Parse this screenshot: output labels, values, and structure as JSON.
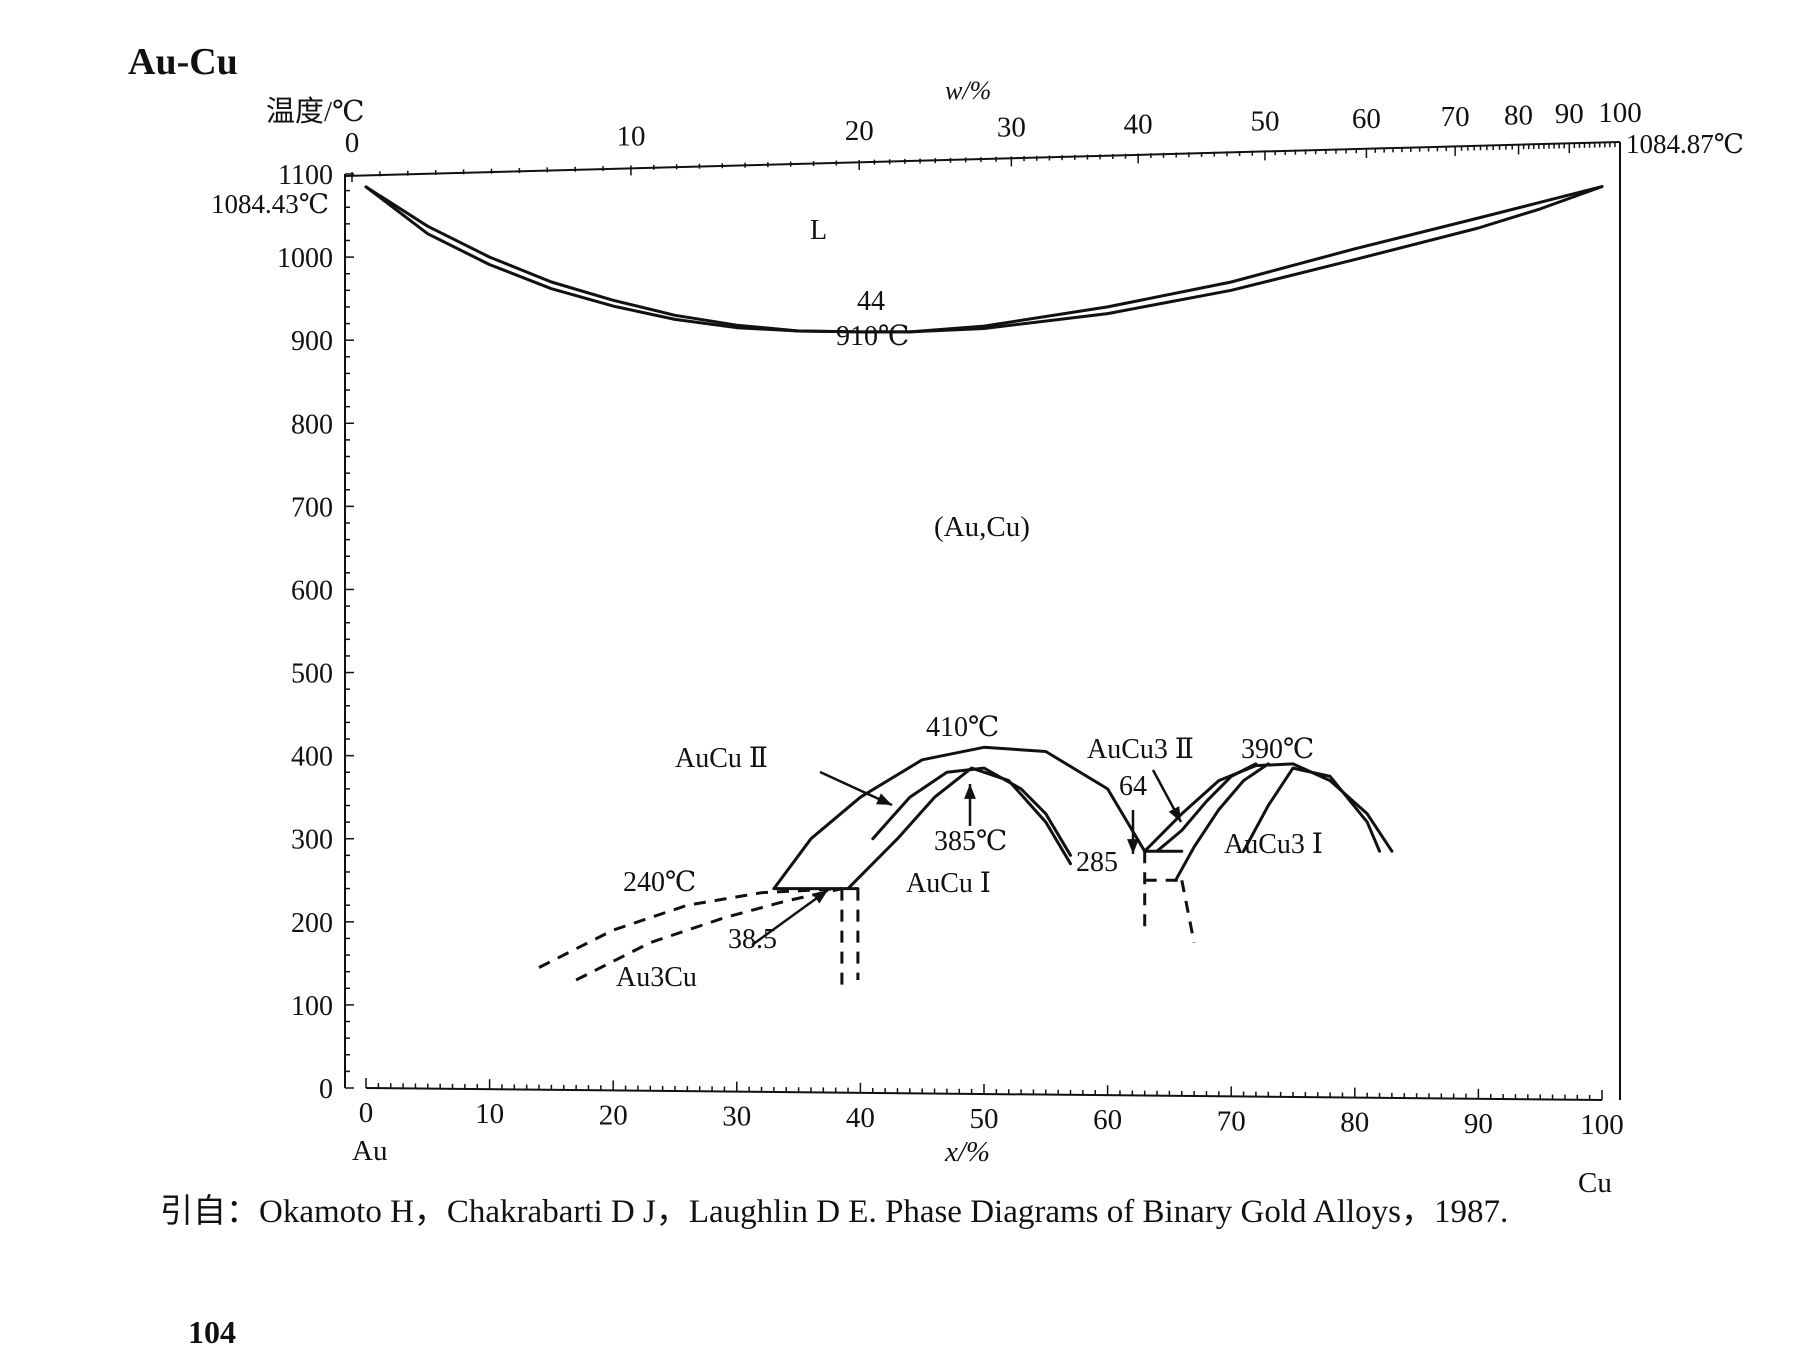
{
  "title": "Au-Cu",
  "chart_data": {
    "type": "line",
    "title": "Au-Cu",
    "ylabel": "温度/℃",
    "xlabel": "x/%",
    "top_xlabel": "w/%",
    "ylim": [
      0,
      1100
    ],
    "xlim": [
      0,
      100
    ],
    "y_ticks": [
      "0",
      "100",
      "200",
      "300",
      "400",
      "500",
      "600",
      "700",
      "800",
      "900",
      "1000",
      "1100"
    ],
    "x_ticks": [
      "0",
      "10",
      "20",
      "30",
      "40",
      "50",
      "60",
      "70",
      "80",
      "90",
      "100"
    ],
    "top_ticks": [
      "0",
      "10",
      "20",
      "30",
      "40",
      "50",
      "60",
      "70",
      "80",
      "90",
      "100"
    ],
    "left_element": "Au",
    "right_element": "Cu",
    "melting_points": {
      "Au": "1084.43℃",
      "Cu": "1084.87℃"
    },
    "phase_labels": {
      "liquid": "L",
      "solid_solution": "(Au,Cu)",
      "aucu_ii": "AuCu Ⅱ",
      "aucu_i": "AuCu Ⅰ",
      "aucu3_ii": "AuCu3 Ⅱ",
      "aucu3_i": "AuCu3 Ⅰ",
      "au3cu": "Au3Cu"
    },
    "annotations": {
      "minimum_composition": "44",
      "minimum_temperature": "910℃",
      "aucu_ii_max": "410℃",
      "aucu_i_max": "385℃",
      "aucu3_max": "390℃",
      "au3cu_max": "240℃",
      "au3cu_comp": "38.5",
      "aucu3_comp": "64",
      "eutectoid": "285"
    },
    "series": [
      {
        "values": [
          [
            0,
            1084.43
          ],
          [
            5,
            1037
          ],
          [
            10,
            1000
          ],
          [
            15,
            970
          ],
          [
            20,
            948
          ],
          [
            25,
            930
          ],
          [
            30,
            918
          ],
          [
            35,
            911
          ],
          [
            40,
            910
          ],
          [
            44,
            910
          ],
          [
            50,
            917
          ],
          [
            60,
            940
          ],
          [
            70,
            970
          ],
          [
            80,
            1010
          ],
          [
            90,
            1047
          ],
          [
            95,
            1066
          ],
          [
            100,
            1084.87
          ]
        ]
      },
      {
        "values": [
          [
            0,
            1084.43
          ],
          [
            5,
            1028
          ],
          [
            10,
            991
          ],
          [
            15,
            962
          ],
          [
            20,
            941
          ],
          [
            25,
            925
          ],
          [
            30,
            915
          ],
          [
            35,
            911
          ],
          [
            40,
            910
          ],
          [
            44,
            910
          ],
          [
            50,
            914
          ],
          [
            60,
            932
          ],
          [
            70,
            960
          ],
          [
            80,
            997
          ],
          [
            90,
            1035
          ],
          [
            95,
            1058
          ],
          [
            100,
            1084.87
          ]
        ]
      },
      {
        "values": [
          [
            33,
            240
          ],
          [
            36,
            300
          ],
          [
            40,
            350
          ],
          [
            45,
            395
          ],
          [
            50,
            410
          ],
          [
            55,
            405
          ],
          [
            60,
            360
          ],
          [
            63,
            285
          ]
        ]
      },
      {
        "values": [
          [
            39,
            240
          ],
          [
            43,
            300
          ],
          [
            46,
            350
          ],
          [
            49,
            385
          ],
          [
            52,
            370
          ],
          [
            55,
            320
          ],
          [
            57,
            270
          ]
        ]
      },
      {
        "values": [
          [
            41,
            300
          ],
          [
            44,
            350
          ],
          [
            47,
            380
          ],
          [
            50,
            385
          ],
          [
            53,
            360
          ],
          [
            55,
            330
          ],
          [
            57,
            280
          ]
        ]
      },
      {
        "values": [
          [
            14,
            145
          ],
          [
            20,
            190
          ],
          [
            26,
            220
          ],
          [
            32,
            235
          ],
          [
            38.5,
            240
          ]
        ]
      },
      {
        "values": [
          [
            17,
            130
          ],
          [
            23,
            175
          ],
          [
            29,
            205
          ],
          [
            34,
            225
          ],
          [
            38.5,
            240
          ]
        ]
      },
      {
        "values": [
          [
            63,
            285
          ],
          [
            66,
            330
          ],
          [
            69,
            370
          ],
          [
            72,
            388
          ],
          [
            75,
            390
          ],
          [
            78,
            370
          ],
          [
            81,
            330
          ],
          [
            83,
            285
          ]
        ]
      },
      {
        "values": [
          [
            71,
            285
          ],
          [
            73,
            340
          ],
          [
            75,
            385
          ],
          [
            78,
            375
          ],
          [
            81,
            320
          ],
          [
            82,
            285
          ]
        ]
      },
      {
        "values": [
          [
            64,
            285
          ],
          [
            66,
            310
          ],
          [
            68,
            345
          ],
          [
            70,
            375
          ],
          [
            72,
            390
          ]
        ]
      },
      {
        "values": [
          [
            65.5,
            250
          ],
          [
            67,
            290
          ],
          [
            69,
            335
          ],
          [
            71,
            370
          ],
          [
            73,
            390
          ]
        ]
      }
    ]
  },
  "citation": "引自：Okamoto H，Chakrabarti D J，Laughlin D E. Phase Diagrams of Binary Gold Alloys，1987.",
  "page_number": "104"
}
